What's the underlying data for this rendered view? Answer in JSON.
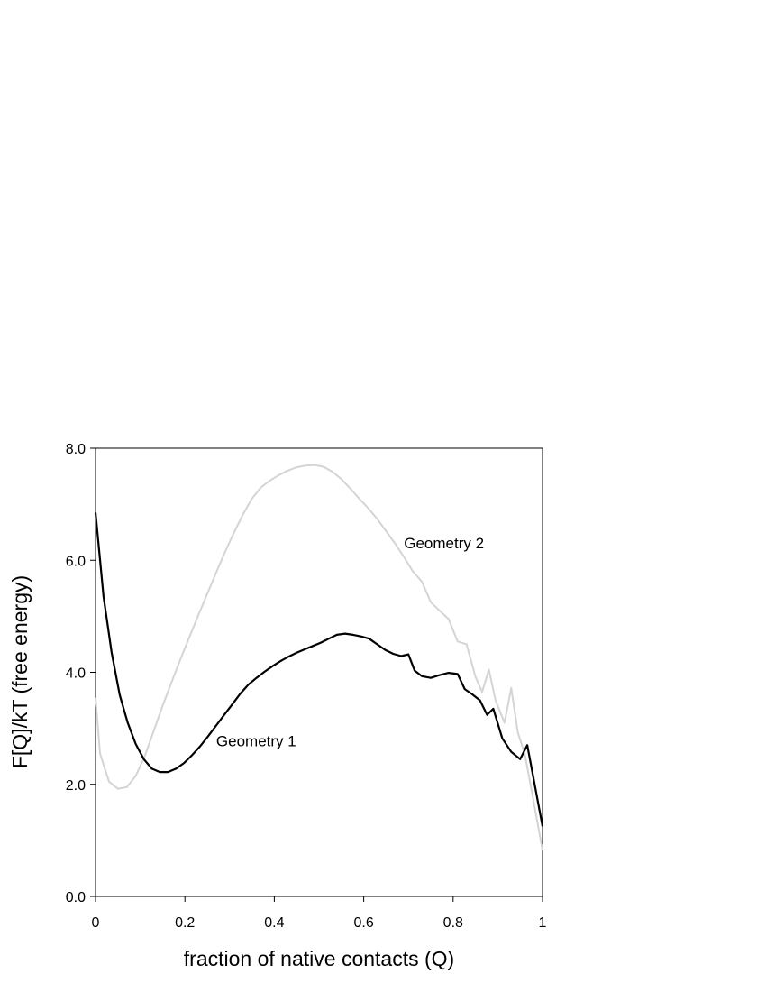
{
  "chart_data": {
    "type": "line",
    "title": "",
    "xlabel": "fraction of native contacts (Q)",
    "ylabel": "F[Q]/kT (free energy)",
    "xlim": [
      0,
      1
    ],
    "ylim": [
      0,
      8
    ],
    "x_ticks": [
      0,
      0.2,
      0.4,
      0.6,
      0.8,
      1
    ],
    "x_tick_labels": [
      "0",
      "0.2",
      "0.4",
      "0.6",
      "0.8",
      "1"
    ],
    "y_ticks": [
      0,
      2,
      4,
      6,
      8
    ],
    "y_tick_labels": [
      "0.0",
      "2.0",
      "4.0",
      "6.0",
      "8.0"
    ],
    "grid": false,
    "legend": "none",
    "series": [
      {
        "name": "Geometry 1",
        "color": "#000000",
        "label_at": [
          0.27,
          2.78
        ],
        "points": [
          [
            0.0,
            6.85
          ],
          [
            0.018,
            5.35
          ],
          [
            0.036,
            4.35
          ],
          [
            0.054,
            3.6
          ],
          [
            0.072,
            3.1
          ],
          [
            0.09,
            2.72
          ],
          [
            0.108,
            2.45
          ],
          [
            0.126,
            2.28
          ],
          [
            0.144,
            2.22
          ],
          [
            0.162,
            2.22
          ],
          [
            0.18,
            2.28
          ],
          [
            0.198,
            2.38
          ],
          [
            0.216,
            2.52
          ],
          [
            0.234,
            2.68
          ],
          [
            0.252,
            2.86
          ],
          [
            0.27,
            3.05
          ],
          [
            0.288,
            3.24
          ],
          [
            0.306,
            3.43
          ],
          [
            0.324,
            3.62
          ],
          [
            0.342,
            3.78
          ],
          [
            0.36,
            3.9
          ],
          [
            0.378,
            4.01
          ],
          [
            0.396,
            4.11
          ],
          [
            0.414,
            4.2
          ],
          [
            0.432,
            4.28
          ],
          [
            0.45,
            4.35
          ],
          [
            0.468,
            4.41
          ],
          [
            0.486,
            4.47
          ],
          [
            0.504,
            4.53
          ],
          [
            0.522,
            4.6
          ],
          [
            0.54,
            4.67
          ],
          [
            0.558,
            4.69
          ],
          [
            0.576,
            4.67
          ],
          [
            0.594,
            4.64
          ],
          [
            0.612,
            4.6
          ],
          [
            0.63,
            4.5
          ],
          [
            0.648,
            4.4
          ],
          [
            0.666,
            4.33
          ],
          [
            0.684,
            4.29
          ],
          [
            0.7,
            4.32
          ],
          [
            0.714,
            4.03
          ],
          [
            0.73,
            3.93
          ],
          [
            0.75,
            3.9
          ],
          [
            0.77,
            3.95
          ],
          [
            0.79,
            3.99
          ],
          [
            0.81,
            3.97
          ],
          [
            0.826,
            3.7
          ],
          [
            0.844,
            3.6
          ],
          [
            0.86,
            3.5
          ],
          [
            0.876,
            3.24
          ],
          [
            0.89,
            3.35
          ],
          [
            0.91,
            2.82
          ],
          [
            0.93,
            2.58
          ],
          [
            0.95,
            2.45
          ],
          [
            0.966,
            2.7
          ],
          [
            0.98,
            2.1
          ],
          [
            1.0,
            1.25
          ]
        ]
      },
      {
        "name": "Geometry 2",
        "color": "#d4d4d4",
        "label_at": [
          0.69,
          6.31
        ],
        "points": [
          [
            0.0,
            3.55
          ],
          [
            0.01,
            2.55
          ],
          [
            0.03,
            2.05
          ],
          [
            0.05,
            1.92
          ],
          [
            0.07,
            1.95
          ],
          [
            0.09,
            2.15
          ],
          [
            0.11,
            2.5
          ],
          [
            0.13,
            2.95
          ],
          [
            0.15,
            3.4
          ],
          [
            0.17,
            3.82
          ],
          [
            0.19,
            4.23
          ],
          [
            0.21,
            4.63
          ],
          [
            0.23,
            5.02
          ],
          [
            0.25,
            5.4
          ],
          [
            0.27,
            5.78
          ],
          [
            0.29,
            6.15
          ],
          [
            0.31,
            6.5
          ],
          [
            0.33,
            6.82
          ],
          [
            0.35,
            7.1
          ],
          [
            0.37,
            7.3
          ],
          [
            0.39,
            7.42
          ],
          [
            0.41,
            7.52
          ],
          [
            0.43,
            7.6
          ],
          [
            0.45,
            7.66
          ],
          [
            0.47,
            7.69
          ],
          [
            0.49,
            7.7
          ],
          [
            0.51,
            7.67
          ],
          [
            0.53,
            7.58
          ],
          [
            0.55,
            7.45
          ],
          [
            0.57,
            7.28
          ],
          [
            0.59,
            7.1
          ],
          [
            0.61,
            6.93
          ],
          [
            0.63,
            6.74
          ],
          [
            0.65,
            6.52
          ],
          [
            0.67,
            6.3
          ],
          [
            0.69,
            6.06
          ],
          [
            0.71,
            5.8
          ],
          [
            0.73,
            5.62
          ],
          [
            0.75,
            5.25
          ],
          [
            0.77,
            5.1
          ],
          [
            0.79,
            4.95
          ],
          [
            0.81,
            4.55
          ],
          [
            0.83,
            4.5
          ],
          [
            0.85,
            3.92
          ],
          [
            0.865,
            3.65
          ],
          [
            0.88,
            4.05
          ],
          [
            0.895,
            3.5
          ],
          [
            0.915,
            3.1
          ],
          [
            0.93,
            3.72
          ],
          [
            0.945,
            2.92
          ],
          [
            0.96,
            2.55
          ],
          [
            0.98,
            1.7
          ],
          [
            1.0,
            0.82
          ]
        ]
      }
    ]
  }
}
